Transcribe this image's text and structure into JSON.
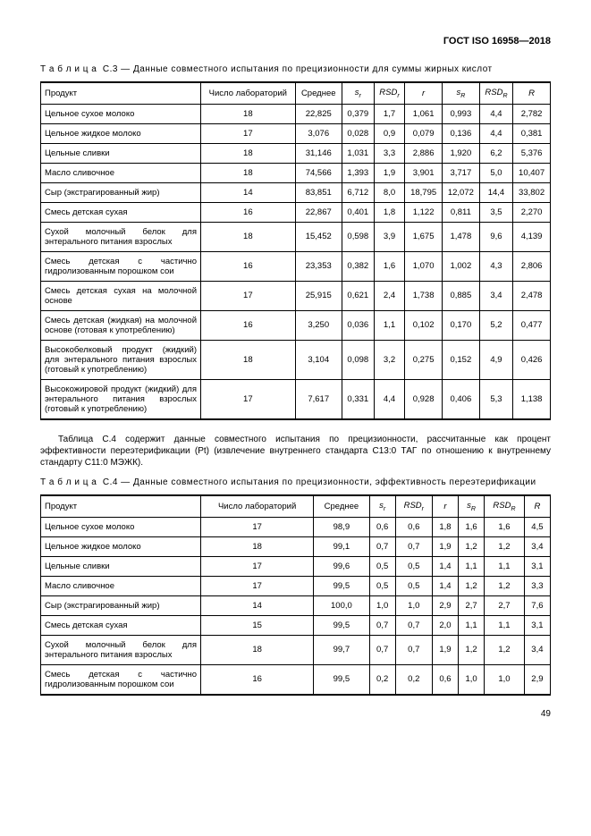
{
  "doc_header": "ГОСТ ISO 16958—2018",
  "table_c3": {
    "caption_prefix": "Т а б л и ц а",
    "caption": "С.3 — Данные совместного испытания по прецизионности для суммы жирных кислот",
    "columns": [
      "Продукт",
      "Число лабораторий",
      "Сред­нее",
      "sᵣ",
      "RSDᵣ",
      "r",
      "s_R",
      "RSD_R",
      "R"
    ],
    "rows": [
      [
        "Цельное сухое молоко",
        "18",
        "22,825",
        "0,379",
        "1,7",
        "1,061",
        "0,993",
        "4,4",
        "2,782"
      ],
      [
        "Цельное жидкое молоко",
        "17",
        "3,076",
        "0,028",
        "0,9",
        "0,079",
        "0,136",
        "4,4",
        "0,381"
      ],
      [
        "Цельные сливки",
        "18",
        "31,146",
        "1,031",
        "3,3",
        "2,886",
        "1,920",
        "6,2",
        "5,376"
      ],
      [
        "Масло сливочное",
        "18",
        "74,566",
        "1,393",
        "1,9",
        "3,901",
        "3,717",
        "5,0",
        "10,407"
      ],
      [
        "Сыр (экстрагированный жир)",
        "14",
        "83,851",
        "6,712",
        "8,0",
        "18,795",
        "12,072",
        "14,4",
        "33,802"
      ],
      [
        "Смесь детская сухая",
        "16",
        "22,867",
        "0,401",
        "1,8",
        "1,122",
        "0,811",
        "3,5",
        "2,270"
      ],
      [
        "Сухой молочный белок для энтерального питания взрослых",
        "18",
        "15,452",
        "0,598",
        "3,9",
        "1,675",
        "1,478",
        "9,6",
        "4,139"
      ],
      [
        "Смесь детская с частично гидролизованным порошком сои",
        "16",
        "23,353",
        "0,382",
        "1,6",
        "1,070",
        "1,002",
        "4,3",
        "2,806"
      ],
      [
        "Смесь детская сухая на молочной основе",
        "17",
        "25,915",
        "0,621",
        "2,4",
        "1,738",
        "0,885",
        "3,4",
        "2,478"
      ],
      [
        "Смесь детская (жидкая) на молочной основе (готовая к употреблению)",
        "16",
        "3,250",
        "0,036",
        "1,1",
        "0,102",
        "0,170",
        "5,2",
        "0,477"
      ],
      [
        "Высокобелковый продукт (жидкий) для энтерального питания взрослых (готовый к употреблению)",
        "18",
        "3,104",
        "0,098",
        "3,2",
        "0,275",
        "0,152",
        "4,9",
        "0,426"
      ],
      [
        "Высокожировой продукт (жидкий) для энтерального питания взрослых (готовый к употреблению)",
        "17",
        "7,617",
        "0,331",
        "4,4",
        "0,928",
        "0,406",
        "5,3",
        "1,138"
      ]
    ]
  },
  "paragraph": "Таблица С.4 содержит данные совместного испытания по прецизионности, рассчитанные как процент эффективности переэтерификации (Pt) (извлечение внутреннего стандарта С13:0 ТАГ по отношению к внутреннему стандарту С11:0 МЭЖК).",
  "table_c4": {
    "caption_prefix": "Т а б л и ц а",
    "caption": "С.4 — Данные совместного испытания по прецизионности, эффективность переэтерификации",
    "rows": [
      [
        "Цельное сухое молоко",
        "17",
        "98,9",
        "0,6",
        "0,6",
        "1,8",
        "1,6",
        "1,6",
        "4,5"
      ],
      [
        "Цельное жидкое молоко",
        "18",
        "99,1",
        "0,7",
        "0,7",
        "1,9",
        "1,2",
        "1,2",
        "3,4"
      ],
      [
        "Цельные сливки",
        "17",
        "99,6",
        "0,5",
        "0,5",
        "1,4",
        "1,1",
        "1,1",
        "3,1"
      ],
      [
        "Масло сливочное",
        "17",
        "99,5",
        "0,5",
        "0,5",
        "1,4",
        "1,2",
        "1,2",
        "3,3"
      ],
      [
        "Сыр (экстрагированный жир)",
        "14",
        "100,0",
        "1,0",
        "1,0",
        "2,9",
        "2,7",
        "2,7",
        "7,6"
      ],
      [
        "Смесь детская сухая",
        "15",
        "99,5",
        "0,7",
        "0,7",
        "2,0",
        "1,1",
        "1,1",
        "3,1"
      ],
      [
        "Сухой молочный белок для энтерального питания взрослых",
        "18",
        "99,7",
        "0,7",
        "0,7",
        "1,9",
        "1,2",
        "1,2",
        "3,4"
      ],
      [
        "Смесь детская с частично гидролизованным порошком сои",
        "16",
        "99,5",
        "0,2",
        "0,2",
        "0,6",
        "1,0",
        "1,0",
        "2,9"
      ]
    ]
  },
  "page_number": "49"
}
